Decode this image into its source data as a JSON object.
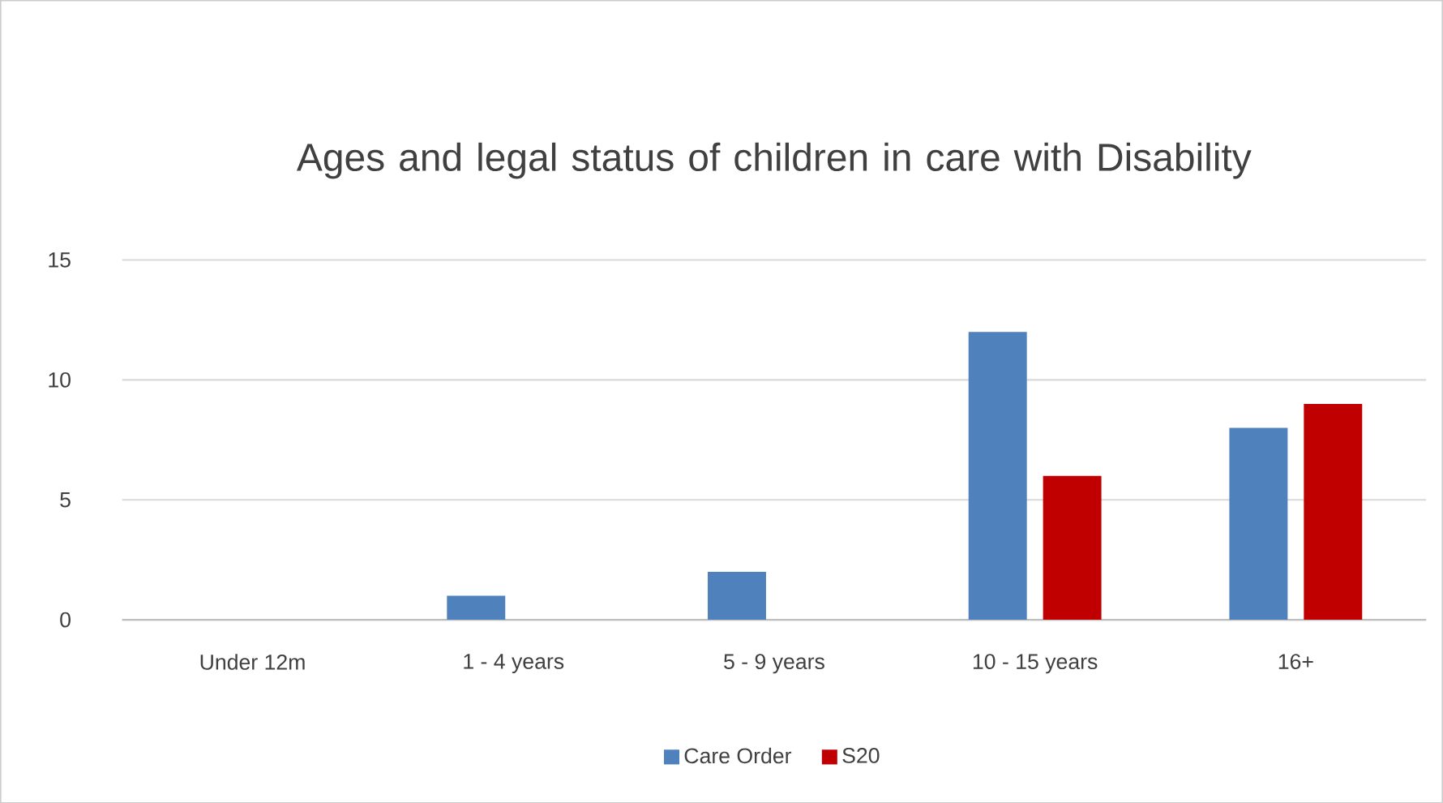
{
  "chart_data": {
    "type": "bar",
    "title": "Ages and legal status of children in care with Disability",
    "categories": [
      "Under 12m",
      "1 - 4 years",
      "5 - 9 years",
      "10 - 15 years",
      "16+"
    ],
    "series": [
      {
        "name": "Care Order",
        "color": "#4f81bd",
        "values": [
          0,
          1,
          2,
          12,
          8
        ]
      },
      {
        "name": "S20",
        "color": "#c00000",
        "values": [
          0,
          0,
          0,
          6,
          9
        ]
      }
    ],
    "ylim": [
      0,
      15
    ],
    "yticks": [
      0,
      5,
      10,
      15
    ],
    "grid": "y",
    "legend": "bottom"
  }
}
